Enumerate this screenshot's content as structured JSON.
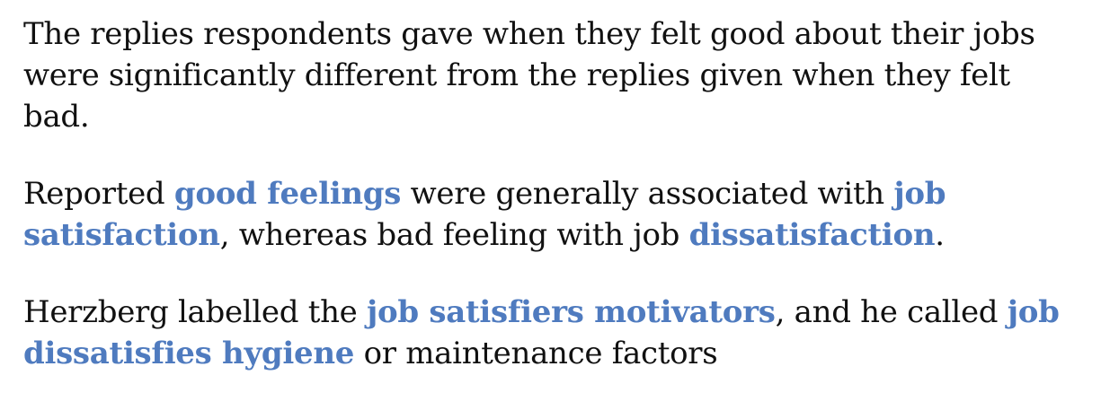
{
  "paragraphs": [
    {
      "segments": [
        {
          "text": "The replies respondents gave when they felt good about their jobs were significantly different from the replies given when they felt bad.",
          "highlight": false
        }
      ]
    },
    {
      "segments": [
        {
          "text": "Reported ",
          "highlight": false
        },
        {
          "text": "good feelings",
          "highlight": true
        },
        {
          "text": " were generally associated with ",
          "highlight": false
        },
        {
          "text": "job satisfaction",
          "highlight": true
        },
        {
          "text": ", whereas bad feeling with job ",
          "highlight": false
        },
        {
          "text": "dissatisfaction",
          "highlight": true
        },
        {
          "text": ".",
          "highlight": false
        }
      ]
    },
    {
      "segments": [
        {
          "text": "Herzberg labelled the ",
          "highlight": false
        },
        {
          "text": "job satisfiers motivators",
          "highlight": true
        },
        {
          "text": ", and he called ",
          "highlight": false
        },
        {
          "text": "job dissatisfies hygiene",
          "highlight": true
        },
        {
          "text": " or maintenance factors",
          "highlight": false
        }
      ]
    }
  ],
  "colors": {
    "text": "#111111",
    "highlight": "#4f7bbf",
    "background": "#ffffff"
  }
}
